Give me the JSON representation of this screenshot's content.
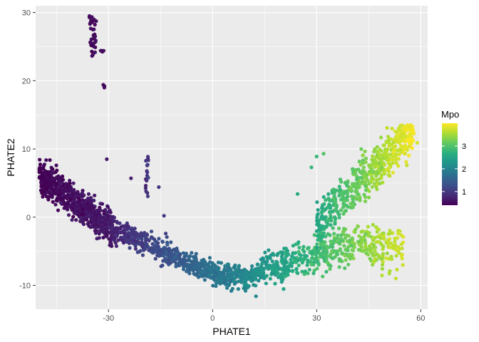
{
  "chart_data": {
    "type": "scatter",
    "xlabel": "PHATE1",
    "ylabel": "PHATE2",
    "xlim": [
      -51,
      62
    ],
    "ylim": [
      -13.5,
      31
    ],
    "x_ticks": [
      -30,
      0,
      30,
      60
    ],
    "y_ticks": [
      -10,
      0,
      10,
      20,
      30
    ],
    "grid": true,
    "background": "#EBEBEB",
    "color_scale": {
      "name": "viridis",
      "variable": "Mpo",
      "range": [
        0.4,
        4.0
      ],
      "legend_title": "Mpo",
      "legend_ticks": [
        1,
        2,
        3
      ],
      "legend_tick_labels": [
        "1",
        "2",
        "3"
      ],
      "legend_position": "right"
    },
    "clusters": [
      {
        "description": "outlier column top",
        "x": [
          -35.5,
          -33.5
        ],
        "y": [
          23.5,
          29.5
        ],
        "n": 30,
        "color_value": [
          0.45,
          0.6
        ]
      },
      {
        "description": "outlier pair",
        "x": [
          -32.5,
          -31.5
        ],
        "y": [
          24.2,
          24.6
        ],
        "n": 3,
        "color_value": [
          0.5,
          0.6
        ]
      },
      {
        "description": "outlier pair mid",
        "x": [
          -31.5,
          -31.0
        ],
        "y": [
          19.0,
          19.5
        ],
        "n": 2,
        "color_value": [
          0.5,
          0.6
        ]
      },
      {
        "description": "small vertical cluster",
        "x": [
          -19.5,
          -18.5
        ],
        "y": [
          2.5,
          9.0
        ],
        "n": 18,
        "color_value": [
          0.7,
          1.1
        ]
      },
      {
        "description": "left arm dense",
        "x": [
          -50,
          -28
        ],
        "y": [
          -3,
          6.5
        ],
        "n": 700,
        "color_value": [
          0.4,
          0.7
        ]
      },
      {
        "description": "left arm fade",
        "x": [
          -28,
          -5
        ],
        "y": [
          -7.5,
          -1
        ],
        "n": 350,
        "color_value": [
          0.8,
          1.6
        ]
      },
      {
        "description": "trough",
        "x": [
          -5,
          15
        ],
        "y": [
          -10,
          -6.5
        ],
        "n": 350,
        "color_value": [
          1.6,
          2.3
        ]
      },
      {
        "description": "right lower arm",
        "x": [
          15,
          55
        ],
        "y": [
          -8,
          2
        ],
        "n": 500,
        "color_value": [
          2.3,
          3.8
        ]
      },
      {
        "description": "right upper arm",
        "x": [
          30,
          58
        ],
        "y": [
          -1,
          13.5
        ],
        "n": 550,
        "color_value": [
          2.6,
          4.0
        ]
      }
    ],
    "points_sample": [
      {
        "x": -35.5,
        "y": 29.3,
        "c": 0.5
      },
      {
        "x": -35.0,
        "y": 28.5,
        "c": 0.5
      },
      {
        "x": -34.5,
        "y": 27.5,
        "c": 0.5
      },
      {
        "x": -34.0,
        "y": 26.8,
        "c": 0.5
      },
      {
        "x": -34.2,
        "y": 25.5,
        "c": 0.5
      },
      {
        "x": -33.8,
        "y": 24.9,
        "c": 0.5
      },
      {
        "x": -34.5,
        "y": 23.8,
        "c": 0.5
      },
      {
        "x": -32.0,
        "y": 24.4,
        "c": 0.5
      },
      {
        "x": -31.4,
        "y": 24.4,
        "c": 0.5
      },
      {
        "x": -31.5,
        "y": 19.4,
        "c": 0.5
      },
      {
        "x": -31.2,
        "y": 19.0,
        "c": 0.5
      },
      {
        "x": -30.5,
        "y": 8.5,
        "c": 0.6
      },
      {
        "x": -23.5,
        "y": 5.7,
        "c": 0.7
      },
      {
        "x": -15.5,
        "y": 4.4,
        "c": 1.0
      },
      {
        "x": -14.0,
        "y": 0.2,
        "c": 1.0
      },
      {
        "x": -13.5,
        "y": -2.4,
        "c": 1.1
      },
      {
        "x": 9.5,
        "y": -10.8,
        "c": 2.0
      },
      {
        "x": 12.5,
        "y": -11.6,
        "c": 2.1
      },
      {
        "x": 24.5,
        "y": 3.4,
        "c": 2.6
      },
      {
        "x": 28.5,
        "y": 7.3,
        "c": 2.8
      },
      {
        "x": 30.0,
        "y": 8.9,
        "c": 2.8
      },
      {
        "x": 32.0,
        "y": 9.3,
        "c": 3.0
      },
      {
        "x": 57.0,
        "y": 13.5,
        "c": 3.9
      },
      {
        "x": 59.0,
        "y": 10.9,
        "c": 3.8
      },
      {
        "x": 56.0,
        "y": 7.6,
        "c": 3.7
      },
      {
        "x": 51.0,
        "y": -3.2,
        "c": 3.8
      },
      {
        "x": 53.5,
        "y": -2.0,
        "c": 3.7
      }
    ]
  }
}
